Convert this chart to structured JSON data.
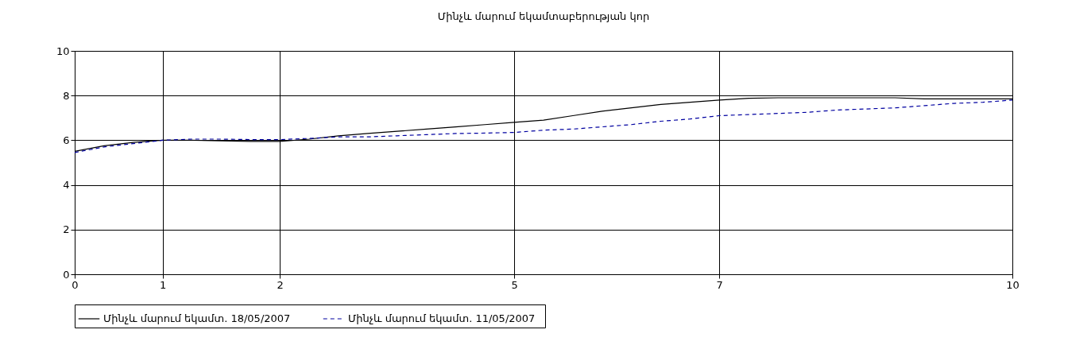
{
  "chart_data": {
    "type": "line",
    "title": "Մինչև մարում եկամտաբերության կոր",
    "categories": [
      "0",
      null,
      null,
      "1",
      null,
      null,
      null,
      "2",
      null,
      null,
      null,
      null,
      null,
      null,
      null,
      "5",
      null,
      null,
      null,
      null,
      null,
      null,
      "7",
      null,
      null,
      null,
      null,
      null,
      null,
      null,
      null,
      null,
      "10"
    ],
    "series": [
      {
        "name": "Մինչև մարում եկամտ.   18/05/2007",
        "color": "#000000",
        "line_style": "solid",
        "values": [
          5.5,
          5.75,
          5.9,
          6.0,
          6.0,
          5.97,
          5.95,
          5.95,
          6.05,
          6.2,
          6.3,
          6.4,
          6.5,
          6.6,
          6.7,
          6.8,
          6.9,
          7.1,
          7.3,
          7.45,
          7.6,
          7.7,
          7.8,
          7.88,
          7.9,
          7.9,
          7.9,
          7.9,
          7.9,
          7.85,
          7.85,
          7.85,
          7.85
        ]
      },
      {
        "name": "Մինչև մարում եկամտ.   11/05/2007",
        "color": "#0000a0",
        "line_style": "dashed",
        "values": [
          5.45,
          5.7,
          5.85,
          6.0,
          6.05,
          6.05,
          6.03,
          6.03,
          6.08,
          6.15,
          6.15,
          6.2,
          6.25,
          6.3,
          6.32,
          6.35,
          6.45,
          6.5,
          6.6,
          6.7,
          6.85,
          6.95,
          7.1,
          7.15,
          7.2,
          7.25,
          7.35,
          7.4,
          7.45,
          7.55,
          7.65,
          7.7,
          7.8
        ]
      }
    ],
    "ylim": [
      0,
      10
    ],
    "yticks": [
      0,
      2,
      4,
      6,
      8,
      10
    ],
    "grid": true,
    "legend": "bottom"
  }
}
